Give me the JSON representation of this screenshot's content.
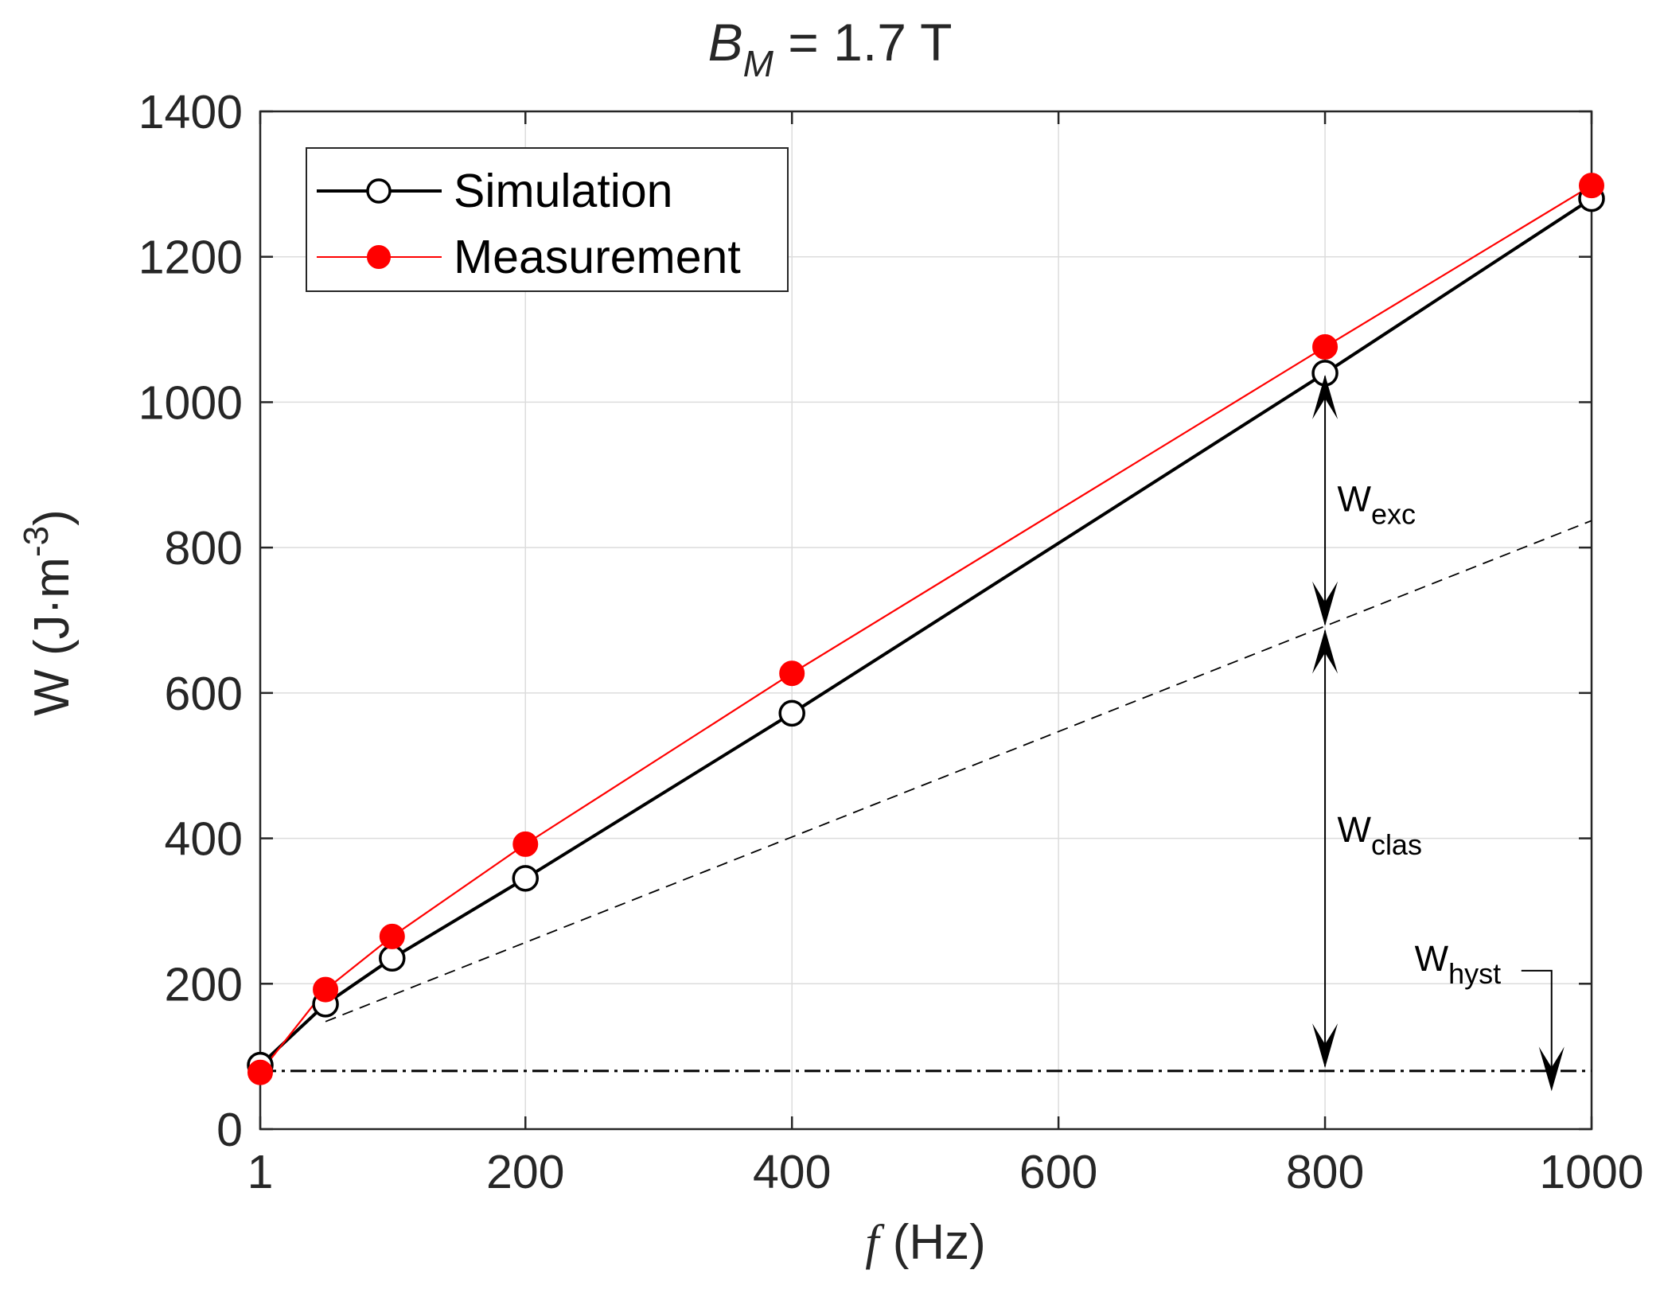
{
  "chart_data": {
    "type": "line",
    "title_main": "B",
    "title_sub": "M",
    "title_rest": " = 1.7 T",
    "xlabel_var": "f",
    "xlabel_unit": " (Hz)",
    "ylabel_main": "W (J·m",
    "ylabel_sup": "-3",
    "ylabel_close": ")",
    "xlim": [
      1,
      1000
    ],
    "ylim": [
      0,
      1400
    ],
    "xticks": [
      1,
      200,
      400,
      600,
      800,
      1000
    ],
    "yticks": [
      0,
      200,
      400,
      600,
      800,
      1000,
      1200,
      1400
    ],
    "grid": true,
    "legend_position": "top-left",
    "series": [
      {
        "name": "Simulation",
        "color": "#000000",
        "marker": "open-circle",
        "x": [
          1,
          50,
          100,
          200,
          400,
          800,
          1000
        ],
        "y": [
          88,
          172,
          235,
          345,
          572,
          1040,
          1280
        ]
      },
      {
        "name": "Measurement",
        "color": "#ff0000",
        "marker": "filled-circle",
        "x": [
          1,
          50,
          100,
          200,
          400,
          800,
          1000
        ],
        "y": [
          78,
          192,
          265,
          392,
          627,
          1076,
          1298
        ]
      }
    ],
    "reference_lines": [
      {
        "name": "classical-loss-line",
        "style": "dashed",
        "x": [
          50,
          1000
        ],
        "y": [
          148,
          837
        ]
      },
      {
        "name": "hysteresis-loss-line",
        "style": "dash-dot",
        "x": [
          1,
          1000
        ],
        "y": [
          80,
          80
        ]
      }
    ],
    "annotations": [
      {
        "name": "w-exc-label",
        "main": "W",
        "sub": "exc",
        "x": 808,
        "y": 850
      },
      {
        "name": "w-clas-label",
        "main": "W",
        "sub": "clas",
        "x": 808,
        "y": 395
      },
      {
        "name": "w-hyst-label",
        "main": "W",
        "sub": "hyst",
        "x": 866,
        "y": 218
      }
    ],
    "arrows": [
      {
        "name": "w-exc-arrow",
        "x": 800,
        "y_from": 1040,
        "y_to": 690
      },
      {
        "name": "w-clas-arrow",
        "x": 800,
        "y_from": 690,
        "y_to": 82
      },
      {
        "name": "w-hyst-arrow",
        "x": 970,
        "y_from": 218,
        "y_to": 50
      }
    ]
  }
}
